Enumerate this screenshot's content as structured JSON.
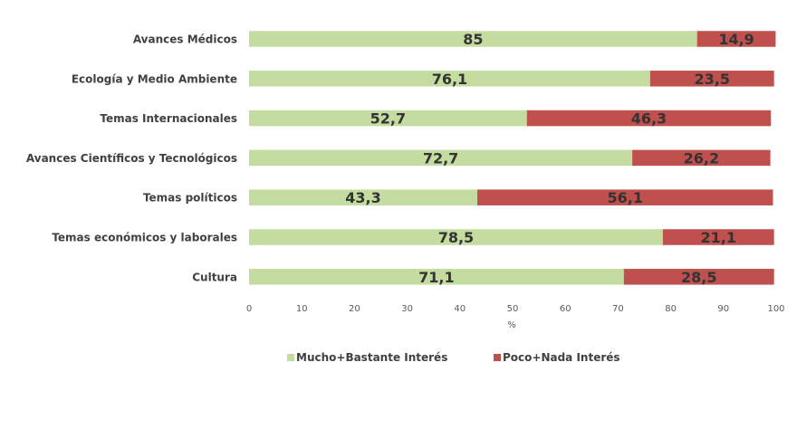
{
  "chart_data": {
    "type": "bar",
    "orientation": "horizontal",
    "stacked": true,
    "title": "",
    "xlabel": "%",
    "ylabel": "",
    "xlim": [
      0,
      100
    ],
    "xticks": [
      0,
      10,
      20,
      30,
      40,
      50,
      60,
      70,
      80,
      90,
      100
    ],
    "categories": [
      "Avances Médicos",
      "Ecología y Medio Ambiente",
      "Temas Internacionales",
      "Avances Científicos y Tecnológicos",
      "Temas políticos",
      "Temas económicos y laborales",
      "Cultura"
    ],
    "series": [
      {
        "name": "Mucho+Bastante Interés",
        "color": "#c4dca0",
        "values": [
          85,
          76.1,
          52.7,
          72.7,
          43.3,
          78.5,
          71.1
        ],
        "labels": [
          "85",
          "76,1",
          "52,7",
          "72,7",
          "43,3",
          "78,5",
          "71,1"
        ]
      },
      {
        "name": "Poco+Nada Interés",
        "color": "#c0504d",
        "values": [
          14.9,
          23.5,
          46.3,
          26.2,
          56.1,
          21.1,
          28.5
        ],
        "labels": [
          "14,9",
          "23,5",
          "46,3",
          "26,2",
          "56,1",
          "21,1",
          "28,5"
        ]
      }
    ],
    "legend": "bottom",
    "grid": false
  }
}
